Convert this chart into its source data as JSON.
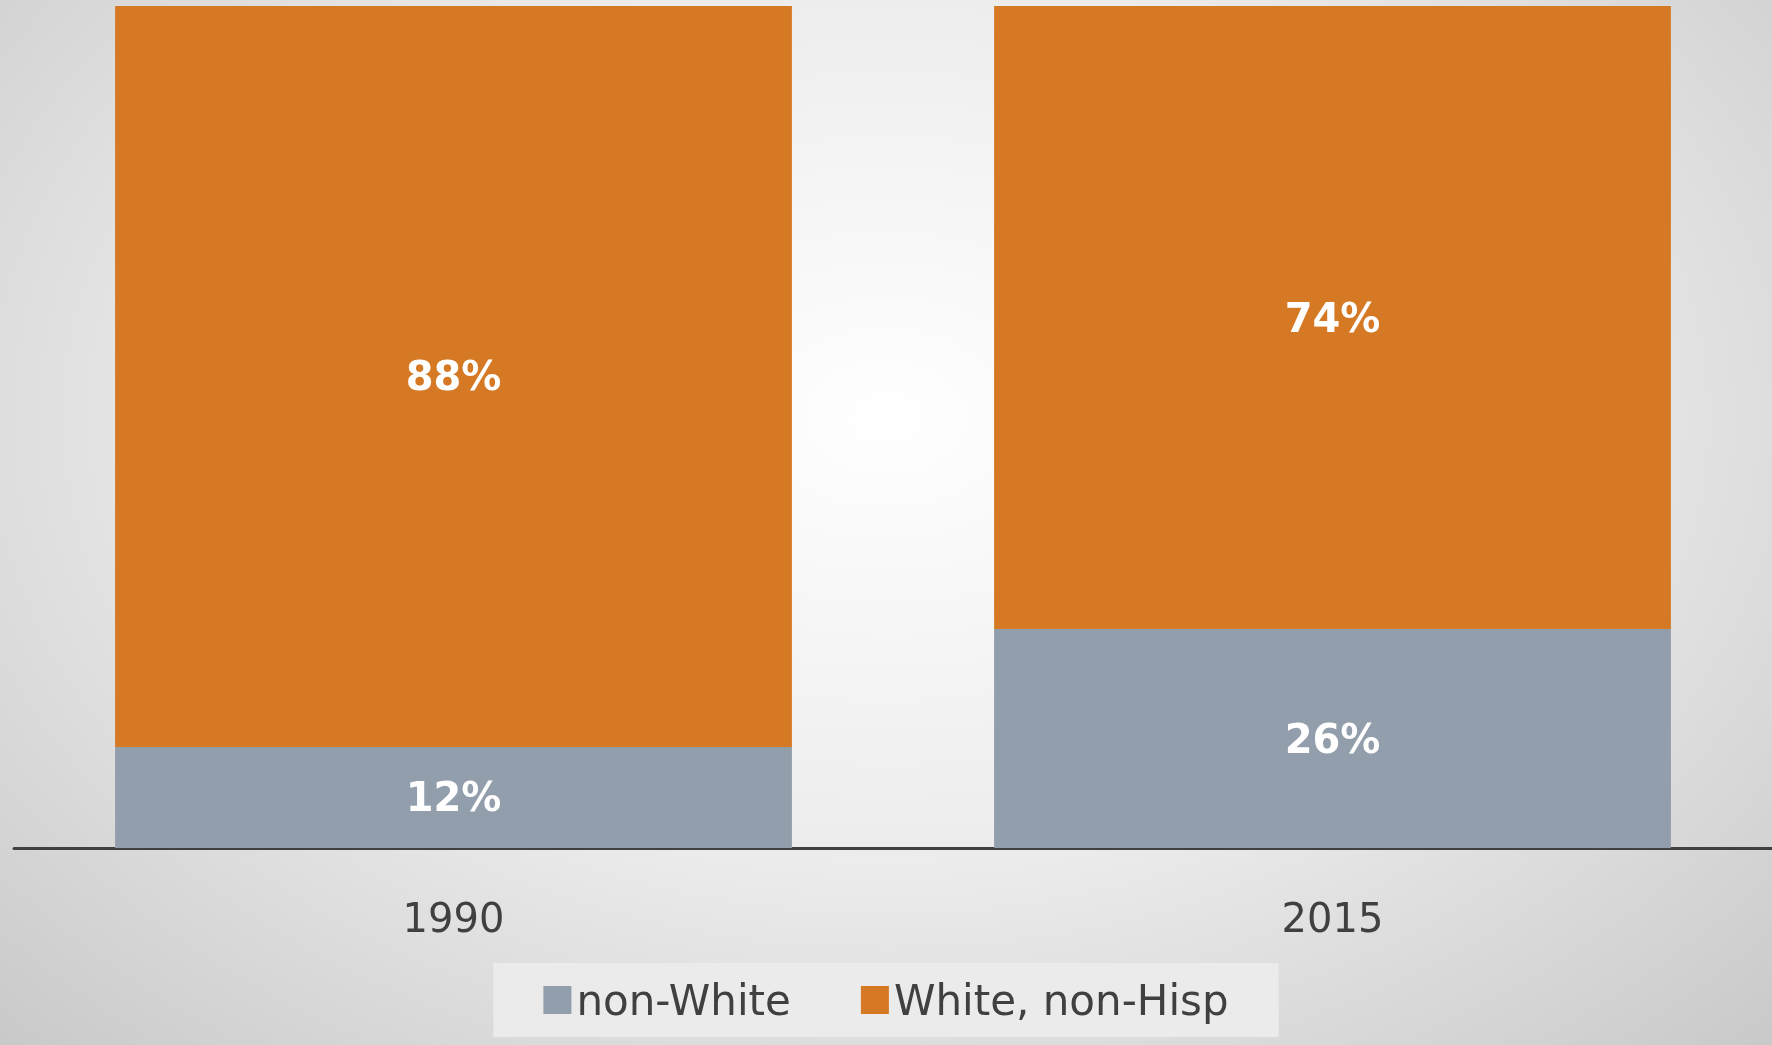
{
  "chart_data": {
    "type": "bar",
    "stacked": true,
    "legend": "bottom",
    "categories": [
      "1990",
      "2015"
    ],
    "series": [
      {
        "name": "non-White",
        "color": "#929eab",
        "values": [
          12,
          26
        ],
        "value_labels": [
          "12%",
          "26%"
        ]
      },
      {
        "name": "White, non-Hisp",
        "color": "#d67925",
        "values": [
          88,
          74
        ],
        "value_labels": [
          "88%",
          "74%"
        ]
      }
    ]
  }
}
